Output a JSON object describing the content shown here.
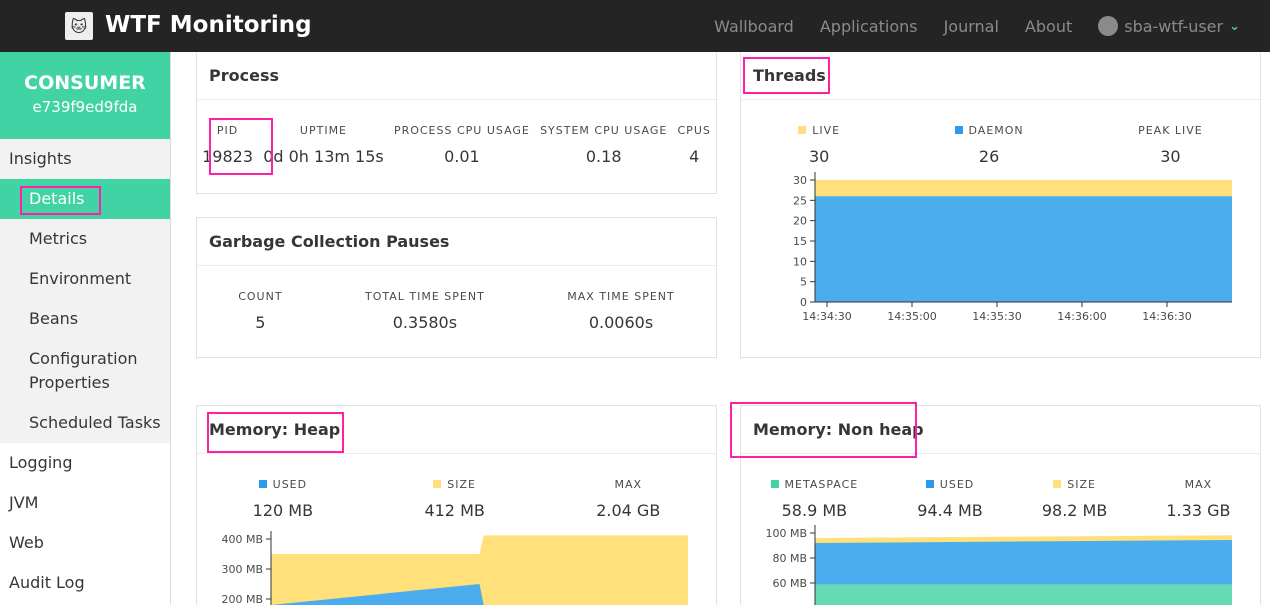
{
  "header": {
    "brand": "WTF Monitoring",
    "links": [
      "Wallboard",
      "Applications",
      "Journal",
      "About"
    ],
    "user": "sba-wtf-user"
  },
  "sidebar": {
    "app_name": "CONSUMER",
    "app_id": "e739f9ed9fda",
    "group": "Insights",
    "sub_items": [
      "Details",
      "Metrics",
      "Environment",
      "Beans",
      "Configuration Properties",
      "Scheduled Tasks"
    ],
    "items": [
      "Logging",
      "JVM",
      "Web",
      "Audit Log"
    ]
  },
  "process": {
    "title": "Process",
    "labels": [
      "PID",
      "UPTIME",
      "PROCESS CPU USAGE",
      "SYSTEM CPU USAGE",
      "CPUS"
    ],
    "values": [
      "19823",
      "0d 0h 13m 15s",
      "0.01",
      "0.18",
      "4"
    ]
  },
  "gc": {
    "title": "Garbage Collection Pauses",
    "labels": [
      "COUNT",
      "TOTAL TIME SPENT",
      "MAX TIME SPENT"
    ],
    "values": [
      "5",
      "0.3580s",
      "0.0060s"
    ]
  },
  "threads": {
    "title": "Threads",
    "labels": [
      "LIVE",
      "DAEMON",
      "PEAK LIVE"
    ],
    "values": [
      "30",
      "26",
      "30"
    ]
  },
  "heap": {
    "title": "Memory: Heap",
    "labels": [
      "USED",
      "SIZE",
      "MAX"
    ],
    "values": [
      "120 MB",
      "412 MB",
      "2.04 GB"
    ]
  },
  "nonheap": {
    "title": "Memory: Non heap",
    "labels": [
      "METASPACE",
      "USED",
      "SIZE",
      "MAX"
    ],
    "values": [
      "58.9 MB",
      "94.4 MB",
      "98.2 MB",
      "1.33 GB"
    ]
  },
  "colors": {
    "accent": "#42d3a5",
    "used": "#4badee",
    "size": "#ffe07a",
    "metaspace": "#66dab5"
  },
  "chart_data": [
    {
      "type": "area",
      "title": "Threads",
      "ylim": [
        0,
        30
      ],
      "yticks": [
        "0",
        "5",
        "10",
        "15",
        "20",
        "25",
        "30"
      ],
      "xticks": [
        "14:34:30",
        "14:35:00",
        "14:35:30",
        "14:36:00",
        "14:36:30"
      ],
      "x": [
        0,
        1
      ],
      "series": [
        {
          "name": "Daemon",
          "values": [
            26,
            26
          ]
        },
        {
          "name": "Live",
          "values": [
            30,
            30
          ]
        }
      ]
    },
    {
      "type": "area",
      "title": "Memory: Heap",
      "ylim": [
        100,
        400
      ],
      "yticks": [
        "200 MB",
        "300 MB",
        "400 MB"
      ],
      "x": [
        0,
        0.5,
        0.51,
        1
      ],
      "series": [
        {
          "name": "Used",
          "values": [
            170,
            250,
            110,
            120
          ]
        },
        {
          "name": "Size",
          "values": [
            350,
            350,
            412,
            412
          ]
        }
      ]
    },
    {
      "type": "area",
      "title": "Memory: Non heap",
      "ylim": [
        30,
        100
      ],
      "yticks": [
        "60 MB",
        "80 MB",
        "100 MB"
      ],
      "x": [
        0,
        1
      ],
      "series": [
        {
          "name": "Metaspace",
          "values": [
            59,
            59
          ]
        },
        {
          "name": "Used",
          "values": [
            92,
            94.4
          ]
        },
        {
          "name": "Size",
          "values": [
            96,
            98.2
          ]
        }
      ]
    }
  ]
}
